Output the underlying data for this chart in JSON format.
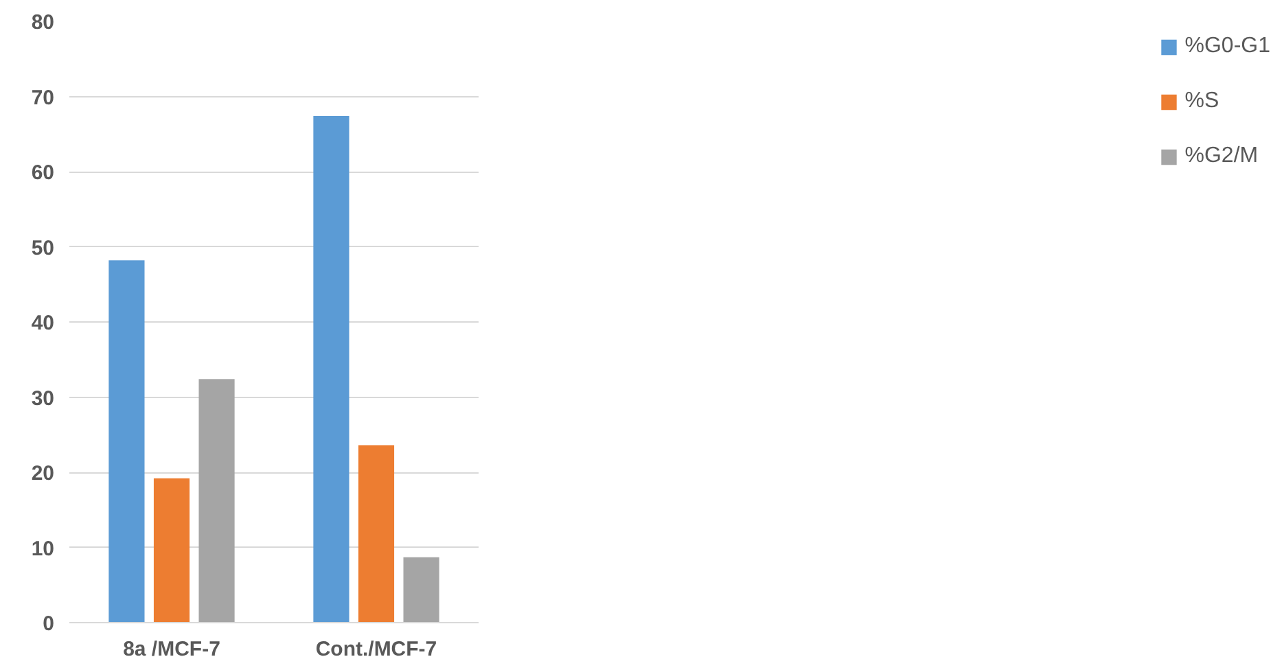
{
  "chart_data": {
    "type": "bar",
    "categories": [
      "8a /MCF-7",
      "Cont./MCF-7"
    ],
    "series": [
      {
        "name": "%G0-G1",
        "color": "#5b9bd5",
        "values": [
          48.2,
          67.4
        ]
      },
      {
        "name": "%S",
        "color": "#ed7d31",
        "values": [
          19.2,
          23.6
        ]
      },
      {
        "name": "%G2/M",
        "color": "#a5a5a5",
        "values": [
          32.4,
          8.7
        ]
      }
    ],
    "ylim": [
      0,
      80
    ],
    "yticks": [
      0,
      10,
      20,
      30,
      40,
      50,
      60,
      70,
      80
    ],
    "grid": "y",
    "legend": "right"
  }
}
